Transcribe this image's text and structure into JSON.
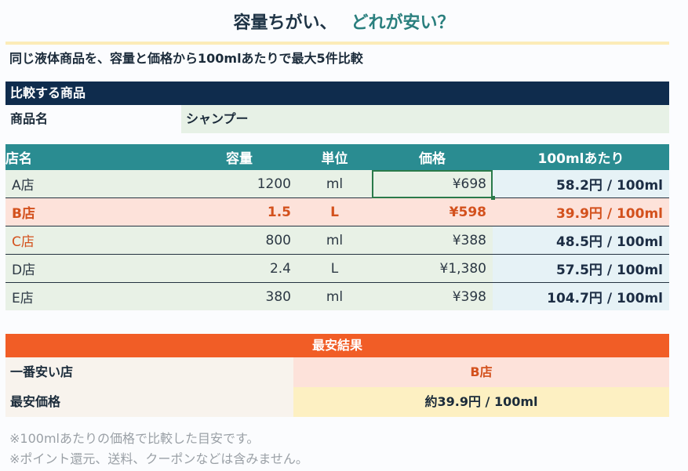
{
  "title": {
    "main": "容量ちがい、",
    "accent": "どれが安い？"
  },
  "subtitle": "同じ液体商品を、容量と価格から100mlあたりで最大5件比較",
  "compare": {
    "header": "比較する商品",
    "product_label": "商品名",
    "product_value": "シャンプー"
  },
  "table": {
    "headers": {
      "store": "店名",
      "volume": "容量",
      "unit": "単位",
      "price": "価格",
      "per100": "100mlあたり"
    },
    "rows": [
      {
        "store": "A店",
        "volume": "1200",
        "unit": "ml",
        "price": "¥698",
        "per100": "58.2円 / 100ml"
      },
      {
        "store": "B店",
        "volume": "1.5",
        "unit": "L",
        "price": "¥598",
        "per100": "39.9円 / 100ml"
      },
      {
        "store": "C店",
        "volume": "800",
        "unit": "ml",
        "price": "¥388",
        "per100": "48.5円 / 100ml"
      },
      {
        "store": "D店",
        "volume": "2.4",
        "unit": "L",
        "price": "¥1,380",
        "per100": "57.5円 / 100ml"
      },
      {
        "store": "E店",
        "volume": "380",
        "unit": "ml",
        "price": "¥398",
        "per100": "104.7円 / 100ml"
      }
    ]
  },
  "result": {
    "header": "最安結果",
    "cheapest_store_label": "一番安い店",
    "cheapest_store_value": "B店",
    "cheapest_price_label": "最安価格",
    "cheapest_price_value": "約39.9円 / 100ml"
  },
  "notes": [
    "※100mlあたりの価格で比較した目安です。",
    "※ポイント還元、送料、クーポンなどは含みません。"
  ],
  "colors": {
    "navy_header": "#0f2c4d",
    "teal_header": "#2a8c91",
    "orange_header": "#f15d26",
    "best_highlight": "#fde2da",
    "best_text": "#d3511d"
  }
}
